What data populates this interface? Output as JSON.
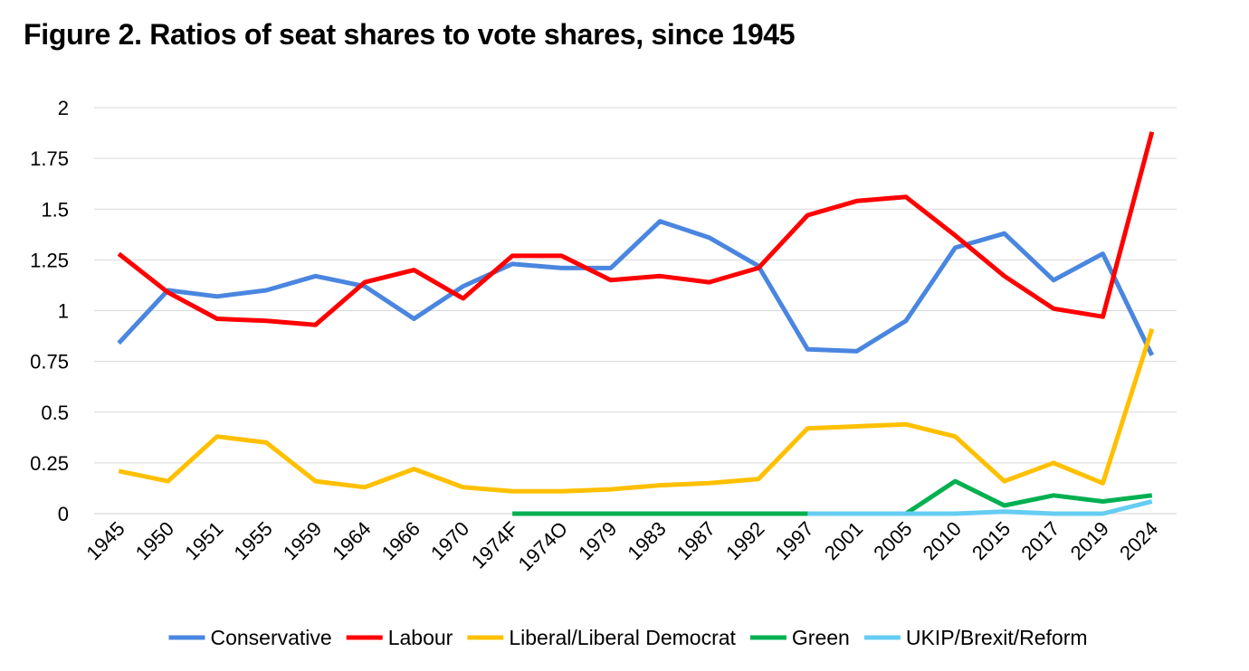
{
  "title": "Figure 2. Ratios of seat shares to vote shares, since 1945",
  "chart_data": {
    "type": "line",
    "title": "Figure 2. Ratios of seat shares to vote shares, since 1945",
    "xlabel": "",
    "ylabel": "",
    "ylim": [
      0,
      2
    ],
    "yticks": [
      "0",
      "0.25",
      "0.5",
      "0.75",
      "1",
      "1.25",
      "1.5",
      "1.75",
      "2"
    ],
    "ytick_values": [
      0,
      0.25,
      0.5,
      0.75,
      1,
      1.25,
      1.5,
      1.75,
      2
    ],
    "grid": "horizontal",
    "legend_position": "bottom",
    "categories": [
      "1945",
      "1950",
      "1951",
      "1955",
      "1959",
      "1964",
      "1966",
      "1970",
      "1974F",
      "1974O",
      "1979",
      "1983",
      "1987",
      "1992",
      "1997",
      "2001",
      "2005",
      "2010",
      "2015",
      "2017",
      "2019",
      "2024"
    ],
    "series": [
      {
        "name": "Conservative",
        "color": "#4a86e0",
        "values": [
          0.84,
          1.1,
          1.07,
          1.1,
          1.17,
          1.12,
          0.96,
          1.12,
          1.23,
          1.21,
          1.21,
          1.44,
          1.36,
          1.22,
          0.81,
          0.8,
          0.95,
          1.31,
          1.38,
          1.15,
          1.28,
          0.78
        ]
      },
      {
        "name": "Labour",
        "color": "#ff0000",
        "values": [
          1.28,
          1.09,
          0.96,
          0.95,
          0.93,
          1.14,
          1.2,
          1.06,
          1.27,
          1.27,
          1.15,
          1.17,
          1.14,
          1.21,
          1.47,
          1.54,
          1.56,
          1.37,
          1.17,
          1.01,
          0.97,
          1.88
        ]
      },
      {
        "name": "Liberal/Liberal Democrat",
        "color": "#ffc000",
        "values": [
          0.21,
          0.16,
          0.38,
          0.35,
          0.16,
          0.13,
          0.22,
          0.13,
          0.11,
          0.11,
          0.12,
          0.14,
          0.15,
          0.17,
          0.42,
          0.43,
          0.44,
          0.38,
          0.16,
          0.25,
          0.15,
          0.91
        ]
      },
      {
        "name": "Green",
        "color": "#00b050",
        "values": [
          null,
          null,
          null,
          null,
          null,
          null,
          null,
          null,
          0,
          0,
          0,
          0,
          0,
          0,
          0,
          0,
          0,
          0.16,
          0.04,
          0.09,
          0.06,
          0.09
        ]
      },
      {
        "name": "UKIP/Brexit/Reform",
        "color": "#66ccf2",
        "values": [
          null,
          null,
          null,
          null,
          null,
          null,
          null,
          null,
          null,
          null,
          null,
          null,
          null,
          null,
          0,
          0,
          0,
          0,
          0.01,
          0,
          0,
          0.06
        ]
      }
    ]
  }
}
